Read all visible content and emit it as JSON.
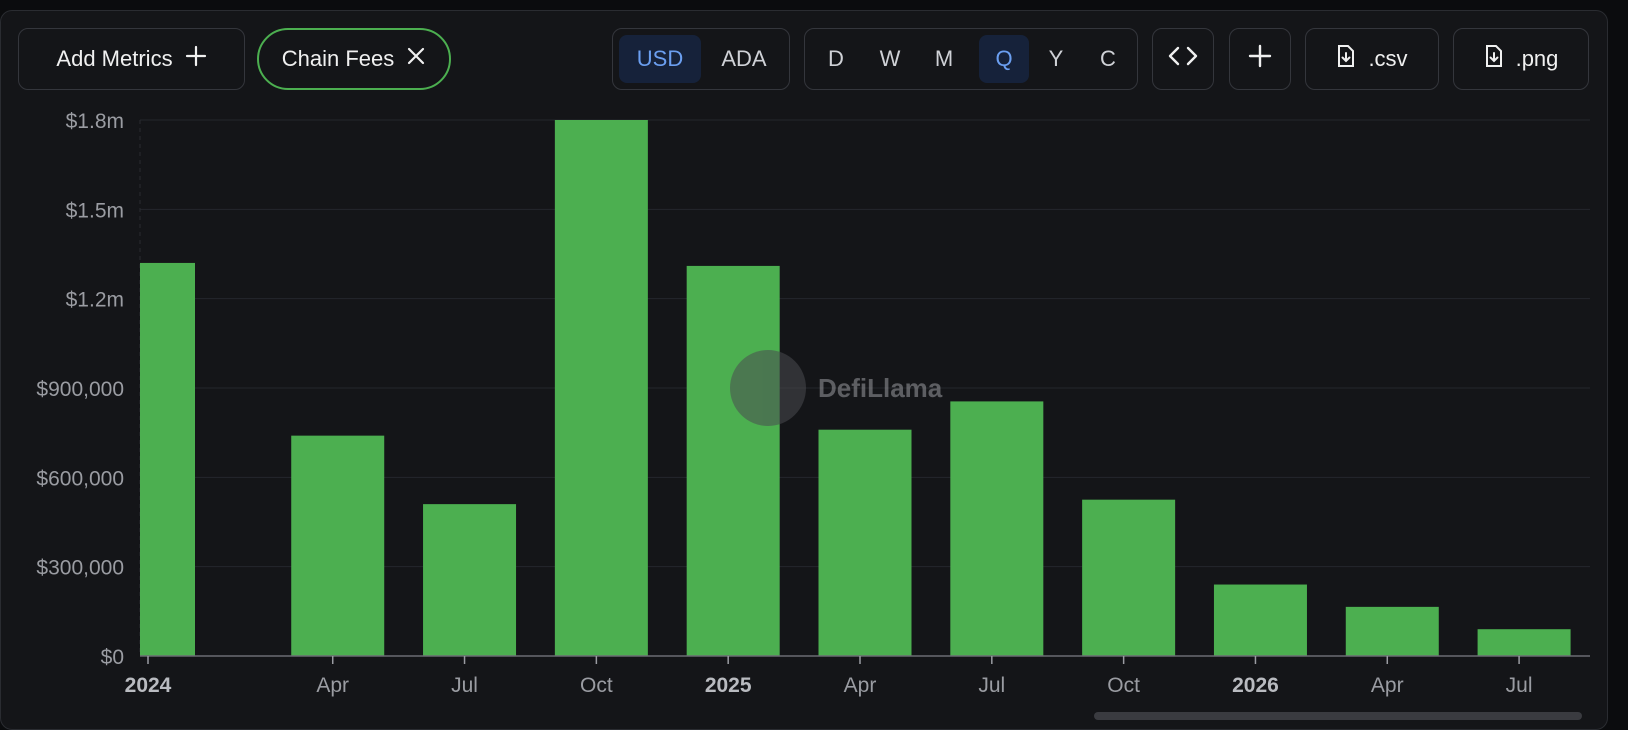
{
  "toolbar": {
    "add_metrics_label": "Add Metrics",
    "chip_label": "Chain Fees",
    "currency_options": [
      "USD",
      "ADA"
    ],
    "currency_selected": "USD",
    "period_options": [
      "D",
      "W",
      "M",
      "Q",
      "Y",
      "C"
    ],
    "period_selected": "Q",
    "embed_icon": "code-brackets-icon",
    "add_icon": "plus-icon",
    "csv_label": ".csv",
    "png_label": ".png",
    "download_icon": "file-download-icon"
  },
  "watermark": {
    "text": "DefiLlama"
  },
  "colors": {
    "bar": "#4caf50",
    "accent": "#6b9ff0",
    "chip_border": "#4caf50"
  },
  "chart_data": {
    "type": "bar",
    "categories": [
      "2024 Q1",
      "2024 Q2",
      "2024 Q3",
      "2024 Q4",
      "2025 Q1",
      "2025 Q2",
      "2025 Q3",
      "2025 Q4",
      "2026 Q1",
      "2026 Q2",
      "2026 Q3"
    ],
    "values": [
      1320000,
      740000,
      510000,
      1800000,
      1310000,
      760000,
      855000,
      525000,
      240000,
      165000,
      90000
    ],
    "x_tick_labels": [
      "2024",
      "Apr",
      "Jul",
      "Oct",
      "2025",
      "Apr",
      "Jul",
      "Oct",
      "2026",
      "Apr",
      "Jul"
    ],
    "bold_ticks": [
      "2024",
      "2025",
      "2026"
    ],
    "y_ticks": [
      0,
      300000,
      600000,
      900000,
      1200000,
      1500000,
      1800000
    ],
    "y_tick_labels": [
      "$0",
      "$300,000",
      "$600,000",
      "$900,000",
      "$1.2m",
      "$1.5m",
      "$1.8m"
    ],
    "ylim": [
      0,
      1800000
    ],
    "grid": true,
    "series": [
      {
        "values": [
          1320000,
          740000,
          510000,
          1800000,
          1310000,
          760000,
          855000,
          525000,
          240000,
          165000,
          90000
        ]
      }
    ]
  }
}
